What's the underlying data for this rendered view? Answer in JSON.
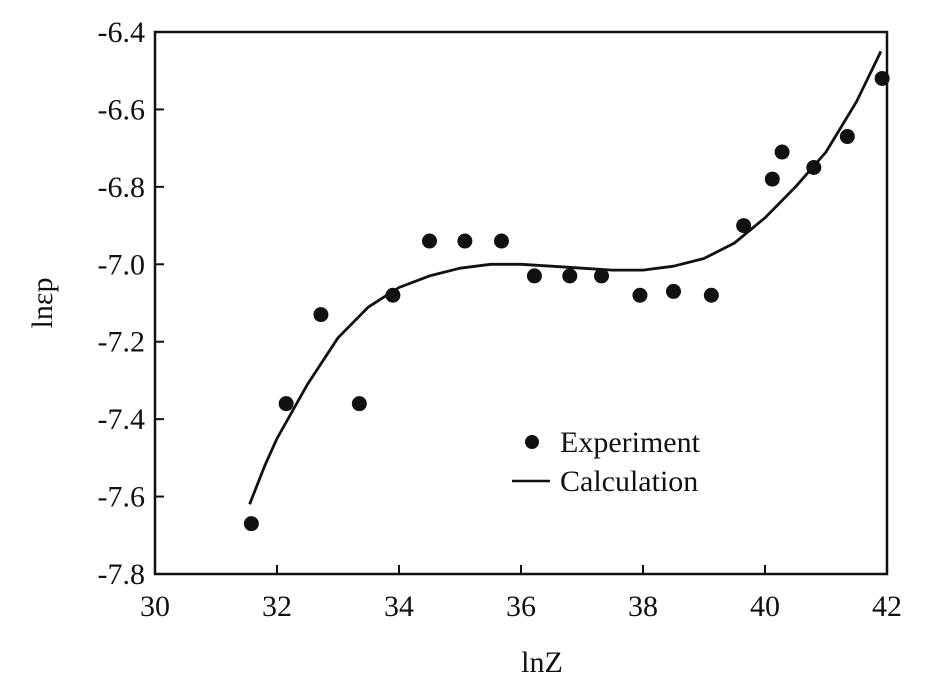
{
  "chart_data": {
    "type": "scatter",
    "title": "",
    "xlabel": "lnZ",
    "ylabel": "lnεp",
    "xlim": [
      30,
      42
    ],
    "ylim": [
      -7.8,
      -6.4
    ],
    "x_ticks": [
      "30",
      "32",
      "34",
      "36",
      "38",
      "40",
      "42"
    ],
    "y_ticks": [
      "-6.4",
      "-6.6",
      "-6.8",
      "-7.0",
      "-7.2",
      "-7.4",
      "-7.6",
      "-7.8"
    ],
    "grid": false,
    "legend": "center-right",
    "series": [
      {
        "name": "Experiment",
        "kind": "scatter",
        "color": "#111111",
        "x": [
          31.58,
          32.15,
          32.72,
          33.35,
          33.9,
          34.5,
          35.08,
          35.68,
          36.22,
          36.8,
          37.32,
          37.95,
          38.5,
          39.12,
          39.65,
          40.12,
          40.28,
          40.8,
          41.35,
          41.92
        ],
        "y": [
          -7.67,
          -7.36,
          -7.13,
          -7.36,
          -7.08,
          -6.94,
          -6.94,
          -6.94,
          -7.03,
          -7.03,
          -7.03,
          -7.08,
          -7.07,
          -7.08,
          -6.9,
          -6.78,
          -6.71,
          -6.75,
          -6.67,
          -6.52
        ]
      },
      {
        "name": "Calculation",
        "kind": "line",
        "color": "#111111",
        "x": [
          31.55,
          31.8,
          32.0,
          32.5,
          33.0,
          33.5,
          34.0,
          34.5,
          35.0,
          35.5,
          36.0,
          36.5,
          37.0,
          37.5,
          38.0,
          38.5,
          39.0,
          39.5,
          40.0,
          40.5,
          41.0,
          41.5,
          41.9
        ],
        "y": [
          -7.62,
          -7.52,
          -7.45,
          -7.31,
          -7.19,
          -7.11,
          -7.06,
          -7.03,
          -7.01,
          -7.0,
          -7.0,
          -7.005,
          -7.01,
          -7.015,
          -7.015,
          -7.005,
          -6.985,
          -6.945,
          -6.88,
          -6.8,
          -6.71,
          -6.58,
          -6.45
        ]
      }
    ]
  }
}
